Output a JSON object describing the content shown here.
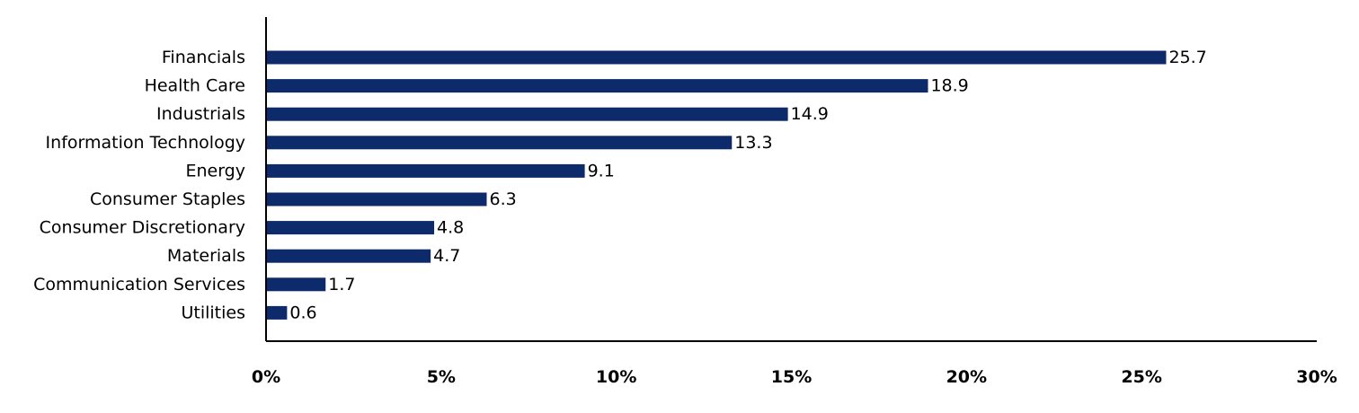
{
  "chart_data": {
    "type": "bar",
    "orientation": "horizontal",
    "categories": [
      "Financials",
      "Health Care",
      "Industrials",
      "Information Technology",
      "Energy",
      "Consumer Staples",
      "Consumer Discretionary",
      "Materials",
      "Communication Services",
      "Utilities"
    ],
    "values": [
      25.7,
      18.9,
      14.9,
      13.3,
      9.1,
      6.3,
      4.8,
      4.7,
      1.7,
      0.6
    ],
    "data_labels": [
      "25.7",
      "18.9",
      "14.9",
      "13.3",
      "9.1",
      "6.3",
      "4.8",
      "4.7",
      "1.7",
      "0.6"
    ],
    "x_ticks": [
      0,
      5,
      10,
      15,
      20,
      25,
      30
    ],
    "x_tick_labels": [
      "0%",
      "5%",
      "10%",
      "15%",
      "20%",
      "25%",
      "30%"
    ],
    "xlim": [
      0,
      30
    ],
    "title": "",
    "xlabel": "",
    "ylabel": "",
    "grid": false,
    "legend": "none",
    "bar_color": "#0d2a6b"
  }
}
